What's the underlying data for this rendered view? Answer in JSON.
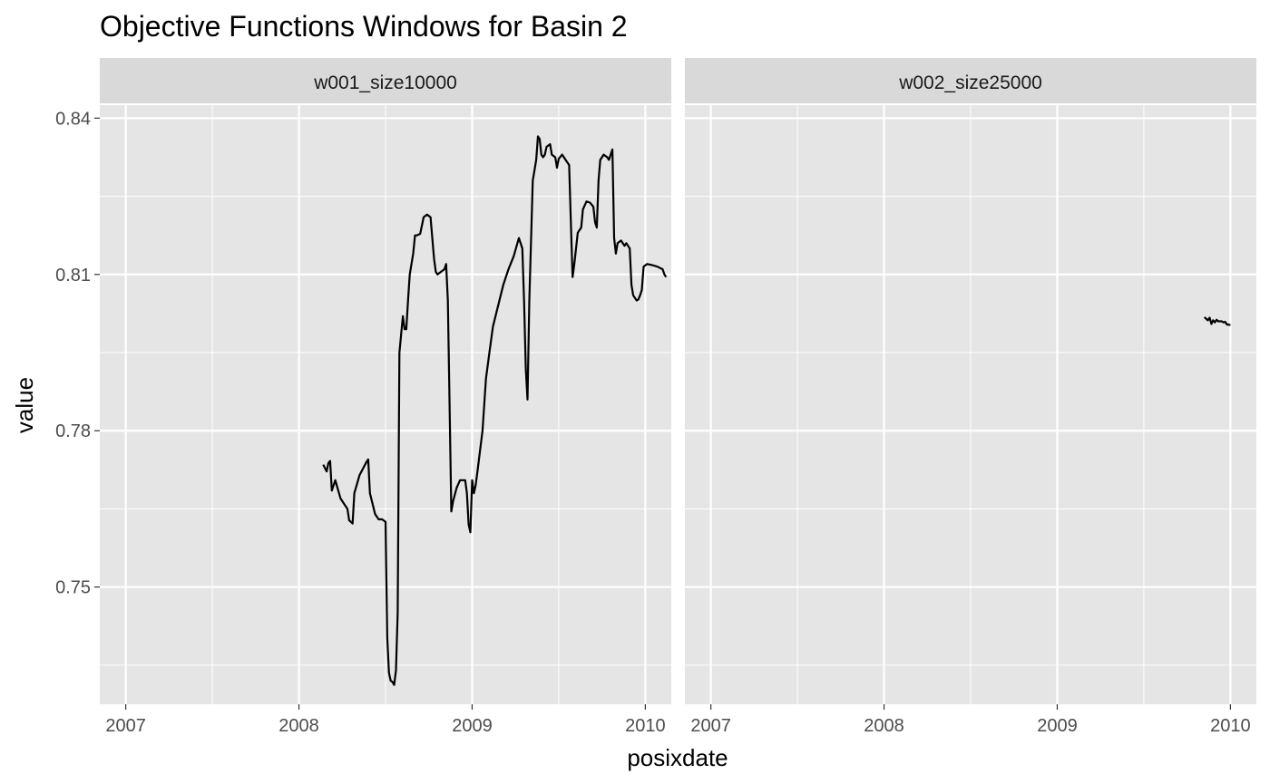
{
  "chart_data": {
    "type": "line",
    "title": "Objective Functions Windows for Basin 2",
    "xlabel": "posixdate",
    "ylabel": "value",
    "xlim": [
      2006.85,
      2010.15
    ],
    "ylim": [
      0.7275,
      0.8425
    ],
    "x_ticks": [
      2007,
      2008,
      2009,
      2010
    ],
    "x_tick_labels": [
      "2007",
      "2008",
      "2009",
      "2010"
    ],
    "y_ticks": [
      0.75,
      0.78,
      0.81,
      0.84
    ],
    "y_tick_labels": [
      "0.75",
      "0.78",
      "0.81",
      "0.84"
    ],
    "line_color": "#000000",
    "panel_background": "#e5e5e5",
    "strip_background": "#d9d9d9",
    "grid_color": "#ffffff",
    "facets": [
      {
        "label": "w001_size10000",
        "points": [
          [
            2008.14,
            0.7735
          ],
          [
            2008.16,
            0.7722
          ],
          [
            2008.17,
            0.7738
          ],
          [
            2008.18,
            0.7742
          ],
          [
            2008.19,
            0.7685
          ],
          [
            2008.21,
            0.7705
          ],
          [
            2008.24,
            0.767
          ],
          [
            2008.28,
            0.765
          ],
          [
            2008.29,
            0.7628
          ],
          [
            2008.31,
            0.7622
          ],
          [
            2008.32,
            0.768
          ],
          [
            2008.35,
            0.7715
          ],
          [
            2008.39,
            0.774
          ],
          [
            2008.4,
            0.7745
          ],
          [
            2008.41,
            0.768
          ],
          [
            2008.44,
            0.764
          ],
          [
            2008.46,
            0.763
          ],
          [
            2008.48,
            0.763
          ],
          [
            2008.5,
            0.7625
          ],
          [
            2008.51,
            0.7402
          ],
          [
            2008.52,
            0.7335
          ],
          [
            2008.53,
            0.732
          ],
          [
            2008.54,
            0.7318
          ],
          [
            2008.55,
            0.7312
          ],
          [
            2008.56,
            0.734
          ],
          [
            2008.57,
            0.745
          ],
          [
            2008.58,
            0.795
          ],
          [
            2008.6,
            0.802
          ],
          [
            2008.61,
            0.7995
          ],
          [
            2008.62,
            0.7995
          ],
          [
            2008.63,
            0.805
          ],
          [
            2008.64,
            0.81
          ],
          [
            2008.66,
            0.814
          ],
          [
            2008.67,
            0.8175
          ],
          [
            2008.68,
            0.8175
          ],
          [
            2008.7,
            0.8178
          ],
          [
            2008.72,
            0.821
          ],
          [
            2008.74,
            0.8215
          ],
          [
            2008.76,
            0.821
          ],
          [
            2008.78,
            0.813
          ],
          [
            2008.79,
            0.8105
          ],
          [
            2008.8,
            0.81
          ],
          [
            2008.82,
            0.8105
          ],
          [
            2008.84,
            0.811
          ],
          [
            2008.85,
            0.812
          ],
          [
            2008.86,
            0.805
          ],
          [
            2008.87,
            0.785
          ],
          [
            2008.88,
            0.7645
          ],
          [
            2008.89,
            0.7665
          ],
          [
            2008.91,
            0.769
          ],
          [
            2008.93,
            0.7705
          ],
          [
            2008.96,
            0.7705
          ],
          [
            2008.97,
            0.768
          ],
          [
            2008.98,
            0.762
          ],
          [
            2008.99,
            0.7605
          ],
          [
            2009.0,
            0.7705
          ],
          [
            2009.01,
            0.768
          ],
          [
            2009.02,
            0.7695
          ],
          [
            2009.03,
            0.772
          ],
          [
            2009.06,
            0.78
          ],
          [
            2009.08,
            0.79
          ],
          [
            2009.1,
            0.795
          ],
          [
            2009.12,
            0.8
          ],
          [
            2009.15,
            0.804
          ],
          [
            2009.18,
            0.808
          ],
          [
            2009.21,
            0.811
          ],
          [
            2009.24,
            0.8135
          ],
          [
            2009.27,
            0.817
          ],
          [
            2009.29,
            0.815
          ],
          [
            2009.3,
            0.805
          ],
          [
            2009.31,
            0.792
          ],
          [
            2009.32,
            0.786
          ],
          [
            2009.33,
            0.805
          ],
          [
            2009.35,
            0.828
          ],
          [
            2009.37,
            0.832
          ],
          [
            2009.38,
            0.8365
          ],
          [
            2009.39,
            0.836
          ],
          [
            2009.4,
            0.833
          ],
          [
            2009.41,
            0.8325
          ],
          [
            2009.42,
            0.833
          ],
          [
            2009.43,
            0.8345
          ],
          [
            2009.45,
            0.835
          ],
          [
            2009.46,
            0.833
          ],
          [
            2009.48,
            0.8325
          ],
          [
            2009.49,
            0.8305
          ],
          [
            2009.5,
            0.8322
          ],
          [
            2009.52,
            0.833
          ],
          [
            2009.54,
            0.832
          ],
          [
            2009.56,
            0.831
          ],
          [
            2009.57,
            0.82
          ],
          [
            2009.58,
            0.8095
          ],
          [
            2009.59,
            0.812
          ],
          [
            2009.61,
            0.818
          ],
          [
            2009.62,
            0.8185
          ],
          [
            2009.63,
            0.819
          ],
          [
            2009.64,
            0.8225
          ],
          [
            2009.66,
            0.824
          ],
          [
            2009.68,
            0.8238
          ],
          [
            2009.7,
            0.823
          ],
          [
            2009.71,
            0.82
          ],
          [
            2009.72,
            0.819
          ],
          [
            2009.73,
            0.828
          ],
          [
            2009.74,
            0.832
          ],
          [
            2009.76,
            0.833
          ],
          [
            2009.78,
            0.8325
          ],
          [
            2009.79,
            0.832
          ],
          [
            2009.8,
            0.833
          ],
          [
            2009.81,
            0.834
          ],
          [
            2009.82,
            0.817
          ],
          [
            2009.83,
            0.814
          ],
          [
            2009.84,
            0.816
          ],
          [
            2009.86,
            0.8165
          ],
          [
            2009.88,
            0.8155
          ],
          [
            2009.89,
            0.816
          ],
          [
            2009.9,
            0.8155
          ],
          [
            2009.91,
            0.815
          ],
          [
            2009.92,
            0.808
          ],
          [
            2009.93,
            0.806
          ],
          [
            2009.95,
            0.805
          ],
          [
            2009.96,
            0.8052
          ],
          [
            2009.97,
            0.806
          ],
          [
            2009.98,
            0.807
          ],
          [
            2009.99,
            0.8115
          ],
          [
            2010.01,
            0.812
          ],
          [
            2010.04,
            0.8118
          ],
          [
            2010.07,
            0.8115
          ],
          [
            2010.1,
            0.811
          ],
          [
            2010.11,
            0.81
          ],
          [
            2010.12,
            0.8095
          ]
        ]
      },
      {
        "label": "w002_size25000",
        "points": [
          [
            2009.85,
            0.8018
          ],
          [
            2009.86,
            0.8015
          ],
          [
            2009.87,
            0.8012
          ],
          [
            2009.88,
            0.8017
          ],
          [
            2009.89,
            0.8005
          ],
          [
            2009.9,
            0.8012
          ],
          [
            2009.91,
            0.8008
          ],
          [
            2009.92,
            0.8013
          ],
          [
            2009.93,
            0.801
          ],
          [
            2009.95,
            0.801
          ],
          [
            2009.96,
            0.8008
          ],
          [
            2009.97,
            0.8009
          ],
          [
            2009.98,
            0.8004
          ],
          [
            2010.0,
            0.8003
          ]
        ]
      }
    ]
  }
}
